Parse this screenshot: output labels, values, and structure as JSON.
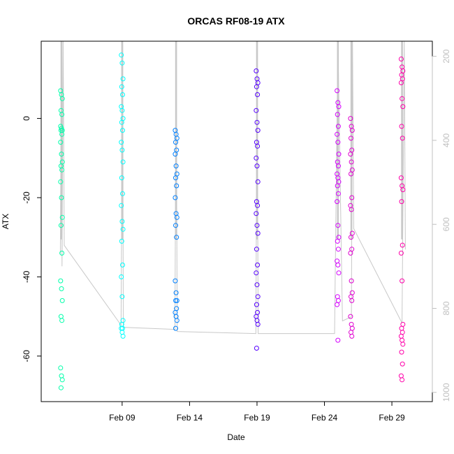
{
  "chart_data": {
    "type": "scatter",
    "title": "ORCAS RF08-19 ATX",
    "xlabel": "Date",
    "ylabel": "ATX",
    "xlim": [
      "2016-02-03",
      "2016-03-03"
    ],
    "ylim": [
      -71.5,
      19.5
    ],
    "x_ticks": [
      {
        "date": "2016-02-09",
        "label": "Feb 09"
      },
      {
        "date": "2016-02-14",
        "label": "Feb 14"
      },
      {
        "date": "2016-02-19",
        "label": "Feb 19"
      },
      {
        "date": "2016-02-24",
        "label": "Feb 24"
      },
      {
        "date": "2016-02-29",
        "label": "Feb 29"
      }
    ],
    "y_ticks": [
      0,
      -20,
      -40,
      -60
    ],
    "right_axis": {
      "label": "",
      "reversed": true,
      "ylim": [
        1022,
        164
      ],
      "ticks": [
        200,
        400,
        600,
        800,
        1000
      ],
      "color": "#c0c0c0"
    },
    "grid": false,
    "legend": "none",
    "pressure_trace": {
      "color": "#c8c8c8",
      "points": [
        [
          "2016-02-04T10:00",
          670
        ],
        [
          "2016-02-04T12:00",
          164
        ],
        [
          "2016-02-04T13:00",
          700
        ],
        [
          "2016-02-04T15:00",
          164
        ],
        [
          "2016-02-04T17:00",
          650
        ],
        [
          "2016-02-08T22:00",
          840
        ],
        [
          "2016-02-09T01:00",
          164
        ],
        [
          "2016-02-09T02:00",
          845
        ],
        [
          "2016-02-12T22:00",
          850
        ],
        [
          "2016-02-13T00:00",
          164
        ],
        [
          "2016-02-13T02:00",
          855
        ],
        [
          "2016-02-18T22:00",
          860
        ],
        [
          "2016-02-19T00:00",
          164
        ],
        [
          "2016-02-19T02:00",
          860
        ],
        [
          "2016-02-24T18:00",
          860
        ],
        [
          "2016-02-25T00:00",
          164
        ],
        [
          "2016-02-25T08:00",
          830
        ],
        [
          "2016-02-26T00:00",
          820
        ],
        [
          "2016-02-26T02:00",
          164
        ],
        [
          "2016-02-26T04:00",
          610
        ],
        [
          "2016-02-29T18:00",
          835
        ],
        [
          "2016-02-29T22:00",
          164
        ],
        [
          "2016-03-01T00:00",
          660
        ]
      ]
    },
    "series": [
      {
        "color": "#00ffaa",
        "x": "2016-02-04T12:00",
        "values": [
          7,
          6,
          5,
          2,
          1,
          -2,
          -2.5,
          -3,
          -3,
          -4,
          -6,
          -9,
          -11,
          -12,
          -13,
          -16,
          -20,
          -25,
          -27,
          -34,
          -41,
          -43,
          -46,
          -50,
          -51,
          -63,
          -65,
          -66,
          -68
        ]
      },
      {
        "color": "#00ffff",
        "x": "2016-02-09T00:00",
        "values": [
          16,
          14,
          10,
          8,
          6,
          3,
          2,
          0,
          -1,
          -3,
          -6,
          -8,
          -11,
          -15,
          -19,
          -22,
          -26,
          -28,
          -31,
          -37,
          -40,
          -45,
          -51,
          -52,
          -53,
          -53,
          -54,
          -55
        ]
      },
      {
        "color": "#0080ff",
        "x": "2016-02-13T00:00",
        "values": [
          -3,
          -4,
          -5,
          -6,
          -8,
          -9,
          -12,
          -14,
          -15,
          -17,
          -20,
          -24,
          -25,
          -27,
          -30,
          -41,
          -44,
          -46,
          -46,
          -48,
          -49,
          -50,
          -51,
          -53
        ]
      },
      {
        "color": "#5500ff",
        "x": "2016-02-19T00:00",
        "values": [
          12,
          10,
          9,
          8,
          6,
          2,
          -1,
          -3,
          -6,
          -7,
          -10,
          -12,
          -16,
          -21,
          -22,
          -24,
          -27,
          -29,
          -33,
          -37,
          -39,
          -42,
          -45,
          -47,
          -49,
          -50,
          -51,
          -52,
          -58
        ]
      },
      {
        "color": "#d500ff",
        "x": "2016-02-25T00:00",
        "values": [
          7,
          4,
          3,
          1,
          -2,
          -4,
          -6,
          -9,
          -11,
          -12,
          -14,
          -15,
          -16,
          -17,
          -19,
          -21,
          -27,
          -30,
          -31,
          -33,
          -36,
          -37,
          -39,
          -45,
          -46,
          -47,
          -56
        ]
      },
      {
        "color": "#e000d0",
        "x": "2016-02-26T00:00",
        "values": [
          0,
          -2,
          -3,
          -5,
          -8,
          -9,
          -11,
          -13,
          -14,
          -20,
          -22,
          -23,
          -29,
          -30,
          -33,
          -34,
          -41,
          -44,
          -45,
          -46,
          -50,
          -52,
          -53,
          -54,
          -55
        ]
      },
      {
        "color": "#ff00aa",
        "x": "2016-02-29T18:00",
        "values": [
          15,
          13,
          12,
          11,
          10,
          9,
          5,
          3,
          -2,
          -5,
          -15,
          -17,
          -18,
          -21,
          -32,
          -34,
          -41,
          -52,
          -53,
          -54,
          -55,
          -56,
          -57,
          -59,
          -62,
          -65,
          -66
        ]
      }
    ]
  }
}
